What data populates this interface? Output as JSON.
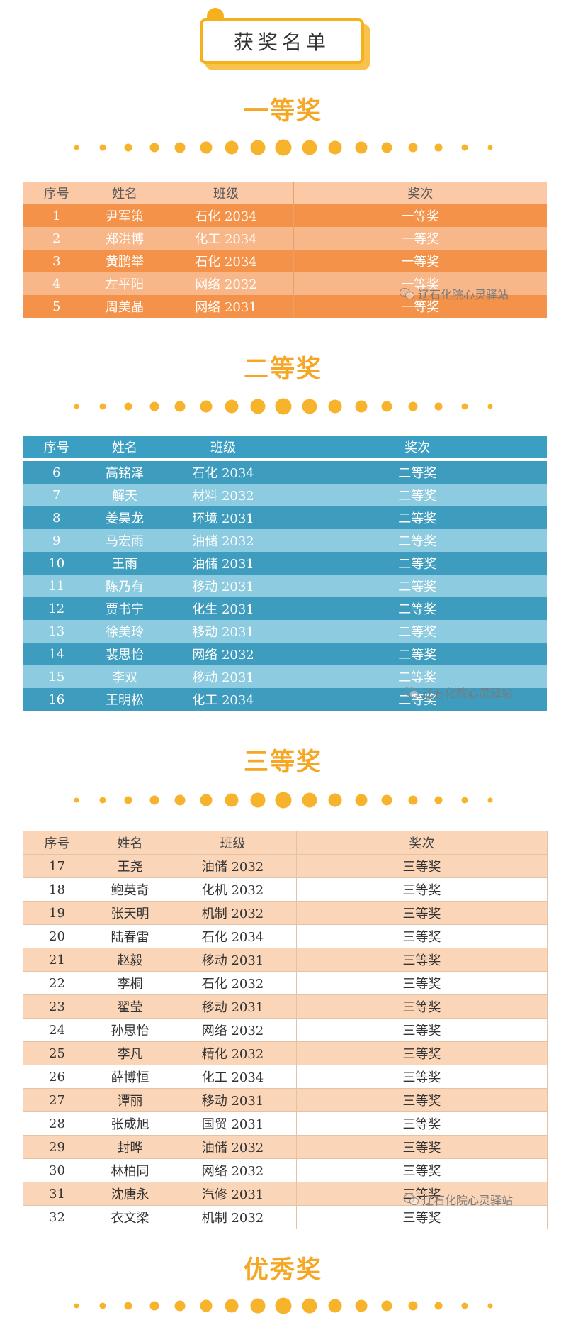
{
  "page_title": "获奖名单",
  "headings": {
    "first": "一等奖",
    "second": "二等奖",
    "third": "三等奖",
    "excellent": "优秀奖"
  },
  "columns": [
    "序号",
    "姓名",
    "班级",
    "奖次"
  ],
  "watermark": "辽石化院心灵驿站",
  "colors": {
    "accent": "#f5a623",
    "first_row_dark": "#f4924a",
    "first_row_light": "#f8b788",
    "second_row_dark": "#3e9dbf",
    "second_row_light": "#8ccbe0",
    "third_row_light": "#fbd5b7"
  },
  "first_prize": [
    {
      "no": "1",
      "name": "尹军策",
      "class": "石化 2034",
      "award": "一等奖"
    },
    {
      "no": "2",
      "name": "郑洪博",
      "class": "化工 2034",
      "award": "一等奖"
    },
    {
      "no": "3",
      "name": "黄鹏举",
      "class": "石化 2034",
      "award": "一等奖"
    },
    {
      "no": "4",
      "name": "左平阳",
      "class": "网络 2032",
      "award": "一等奖"
    },
    {
      "no": "5",
      "name": "周美晶",
      "class": "网络 2031",
      "award": "一等奖"
    }
  ],
  "second_prize": [
    {
      "no": "6",
      "name": "高铭泽",
      "class": "石化 2034",
      "award": "二等奖"
    },
    {
      "no": "7",
      "name": "解天",
      "class": "材料 2032",
      "award": "二等奖"
    },
    {
      "no": "8",
      "name": "姜昊龙",
      "class": "环境 2031",
      "award": "二等奖"
    },
    {
      "no": "9",
      "name": "马宏雨",
      "class": "油储 2032",
      "award": "二等奖"
    },
    {
      "no": "10",
      "name": "王雨",
      "class": "油储 2031",
      "award": "二等奖"
    },
    {
      "no": "11",
      "name": "陈乃有",
      "class": "移动 2031",
      "award": "二等奖"
    },
    {
      "no": "12",
      "name": "贾书宁",
      "class": "化生 2031",
      "award": "二等奖"
    },
    {
      "no": "13",
      "name": "徐美玲",
      "class": "移动 2031",
      "award": "二等奖"
    },
    {
      "no": "14",
      "name": "裴思怡",
      "class": "网络 2032",
      "award": "二等奖"
    },
    {
      "no": "15",
      "name": "李双",
      "class": "移动 2031",
      "award": "二等奖"
    },
    {
      "no": "16",
      "name": "王明松",
      "class": "化工 2034",
      "award": "二等奖"
    }
  ],
  "third_prize": [
    {
      "no": "17",
      "name": "王尧",
      "class": "油储 2032",
      "award": "三等奖"
    },
    {
      "no": "18",
      "name": "鲍英奇",
      "class": "化机 2032",
      "award": "三等奖"
    },
    {
      "no": "19",
      "name": "张天明",
      "class": "机制 2032",
      "award": "三等奖"
    },
    {
      "no": "20",
      "name": "陆春雷",
      "class": "石化 2034",
      "award": "三等奖"
    },
    {
      "no": "21",
      "name": "赵毅",
      "class": "移动 2031",
      "award": "三等奖"
    },
    {
      "no": "22",
      "name": "李桐",
      "class": "石化 2032",
      "award": "三等奖"
    },
    {
      "no": "23",
      "name": "翟莹",
      "class": "移动 2031",
      "award": "三等奖"
    },
    {
      "no": "24",
      "name": "孙思怡",
      "class": "网络 2032",
      "award": "三等奖"
    },
    {
      "no": "25",
      "name": "李凡",
      "class": "精化 2032",
      "award": "三等奖"
    },
    {
      "no": "26",
      "name": "薛博恒",
      "class": "化工 2034",
      "award": "三等奖"
    },
    {
      "no": "27",
      "name": "谭丽",
      "class": "移动 2031",
      "award": "三等奖"
    },
    {
      "no": "28",
      "name": "张成旭",
      "class": "国贸 2031",
      "award": "三等奖"
    },
    {
      "no": "29",
      "name": "封晔",
      "class": "油储 2032",
      "award": "三等奖"
    },
    {
      "no": "30",
      "name": "林柏同",
      "class": "网络 2032",
      "award": "三等奖"
    },
    {
      "no": "31",
      "name": "沈唐永",
      "class": "汽修 2031",
      "award": "三等奖"
    },
    {
      "no": "32",
      "name": "衣文梁",
      "class": "机制 2032",
      "award": "三等奖"
    }
  ]
}
